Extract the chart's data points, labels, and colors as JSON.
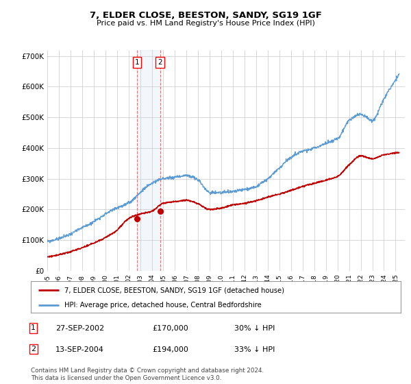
{
  "title": "7, ELDER CLOSE, BEESTON, SANDY, SG19 1GF",
  "subtitle": "Price paid vs. HM Land Registry's House Price Index (HPI)",
  "ylabel_ticks": [
    "£0",
    "£100K",
    "£200K",
    "£300K",
    "£400K",
    "£500K",
    "£600K",
    "£700K"
  ],
  "ytick_values": [
    0,
    100000,
    200000,
    300000,
    400000,
    500000,
    600000,
    700000
  ],
  "ylim": [
    0,
    720000
  ],
  "xlim_start": 1995.0,
  "xlim_end": 2025.8,
  "hpi_color": "#5b9bd5",
  "price_color": "#c00000",
  "marker_color": "#c00000",
  "sale1_x": 2002.74,
  "sale1_y": 170000,
  "sale2_x": 2004.71,
  "sale2_y": 194000,
  "transaction_label1": "1",
  "transaction_label2": "2",
  "legend_line1": "7, ELDER CLOSE, BEESTON, SANDY, SG19 1GF (detached house)",
  "legend_line2": "HPI: Average price, detached house, Central Bedfordshire",
  "table_row1_num": "1",
  "table_row1_date": "27-SEP-2002",
  "table_row1_price": "£170,000",
  "table_row1_hpi": "30% ↓ HPI",
  "table_row2_num": "2",
  "table_row2_date": "13-SEP-2004",
  "table_row2_price": "£194,000",
  "table_row2_hpi": "33% ↓ HPI",
  "footnote": "Contains HM Land Registry data © Crown copyright and database right 2024.\nThis data is licensed under the Open Government Licence v3.0.",
  "background_color": "#ffffff",
  "grid_color": "#c8c8c8",
  "shade_color": "#cce0f5"
}
